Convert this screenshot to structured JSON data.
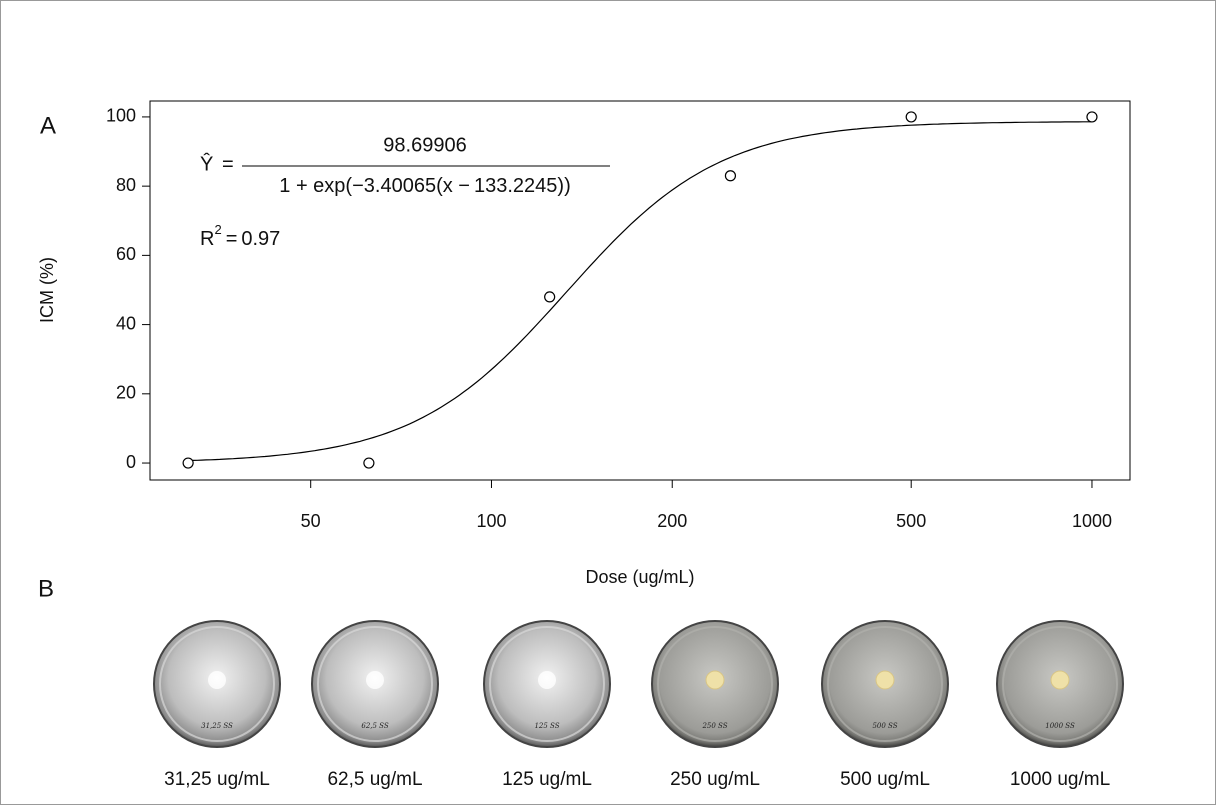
{
  "chart_data": {
    "type": "scatter",
    "panel_labels": [
      "A",
      "B"
    ],
    "xlabel": "Dose (ug/mL)",
    "ylabel": "ICM (%)",
    "x": [
      31.25,
      62.5,
      125,
      250,
      500,
      1000
    ],
    "values": [
      0,
      0,
      48,
      83,
      100,
      100
    ],
    "color": "#000000",
    "xscale": "log",
    "xlim": [
      27,
      1157
    ],
    "xticks": [
      50,
      100,
      200,
      500,
      1000
    ],
    "ylim": [
      -4.9,
      104.6
    ],
    "yticks": [
      0,
      20,
      40,
      60,
      80,
      100
    ],
    "grid": false,
    "fit": {
      "lhs": "Ŷ",
      "equals": "=",
      "numerator": 98.69906,
      "den_start": "1 + exp(−",
      "slope": 3.40065,
      "den_mid": "(x −",
      "center": 133.2245,
      "den_end": "))"
    },
    "r2": {
      "symbol": "R",
      "sup": "2",
      "equals": "=",
      "value": 0.97
    }
  },
  "dishes": [
    {
      "label": "31,25 ug/mL",
      "note": "31,25 SS"
    },
    {
      "label": "62,5 ug/mL",
      "note": "62,5 SS"
    },
    {
      "label": "125 ug/mL",
      "note": "125 SS"
    },
    {
      "label": "250 ug/mL",
      "note": "250 SS"
    },
    {
      "label": "500 ug/mL",
      "note": "500 SS"
    },
    {
      "label": "1000 ug/mL",
      "note": "1000 SS"
    }
  ]
}
